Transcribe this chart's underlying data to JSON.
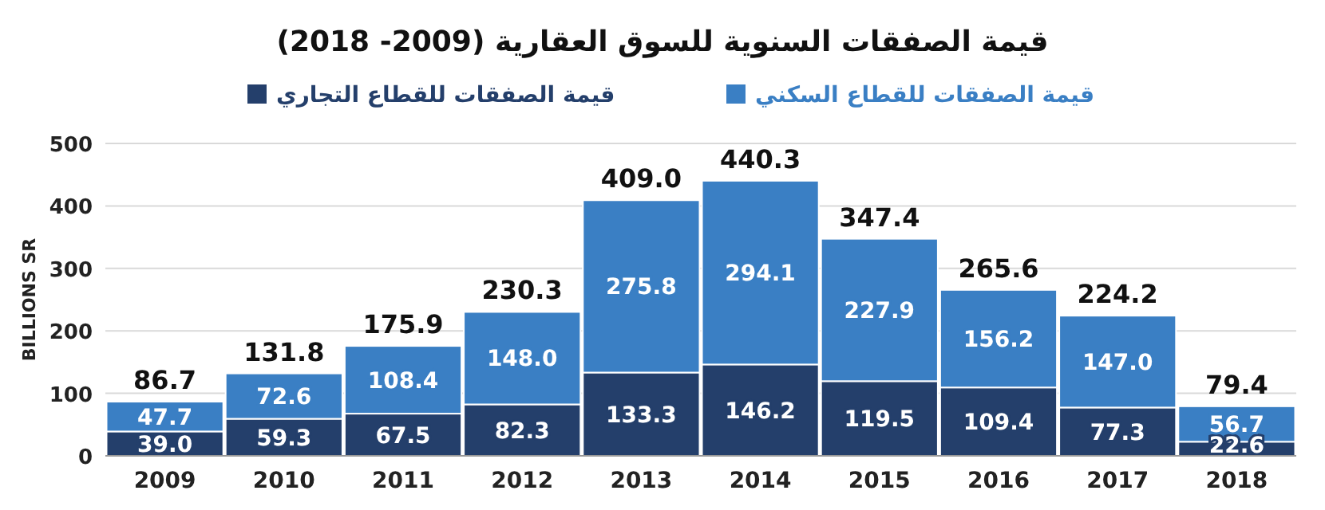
{
  "chart_data": {
    "type": "bar",
    "stacked": true,
    "title": "قيمة الصفقات السنوية للسوق العقارية (2009- 2018)",
    "ylabel": "BILLIONS SR",
    "categories": [
      "2009",
      "2010",
      "2011",
      "2012",
      "2013",
      "2014",
      "2015",
      "2016",
      "2017",
      "2018"
    ],
    "series": [
      {
        "name": "قيمة الصفقات للقطاع التجاري",
        "color": "#243f6b",
        "values": [
          39.0,
          59.3,
          67.5,
          82.3,
          133.3,
          146.2,
          119.5,
          109.4,
          77.3,
          22.6
        ],
        "value_labels": [
          "39.0",
          "59.3",
          "67.5",
          "82.3",
          "133.3",
          "146.2",
          "119.5",
          "109.4",
          "77.3",
          "22.6"
        ]
      },
      {
        "name": "قيمة الصفقات للقطاع السكني",
        "color": "#3a7fc4",
        "values": [
          47.7,
          72.6,
          108.4,
          148.0,
          275.8,
          294.1,
          227.9,
          156.2,
          147.0,
          56.7
        ],
        "value_labels": [
          "47.7",
          "72.6",
          "108.4",
          "148.0",
          "275.8",
          "294.1",
          "227.9",
          "156.2",
          "147.0",
          "56.7"
        ]
      }
    ],
    "totals": [
      "86.7",
      "131.8",
      "175.9",
      "230.3",
      "409.0",
      "440.3",
      "347.4",
      "265.6",
      "224.2",
      "79.4"
    ],
    "ylim": [
      0,
      500
    ],
    "yticks": [
      0,
      100,
      200,
      300,
      400,
      500
    ],
    "grid": "y",
    "legend": "top"
  }
}
